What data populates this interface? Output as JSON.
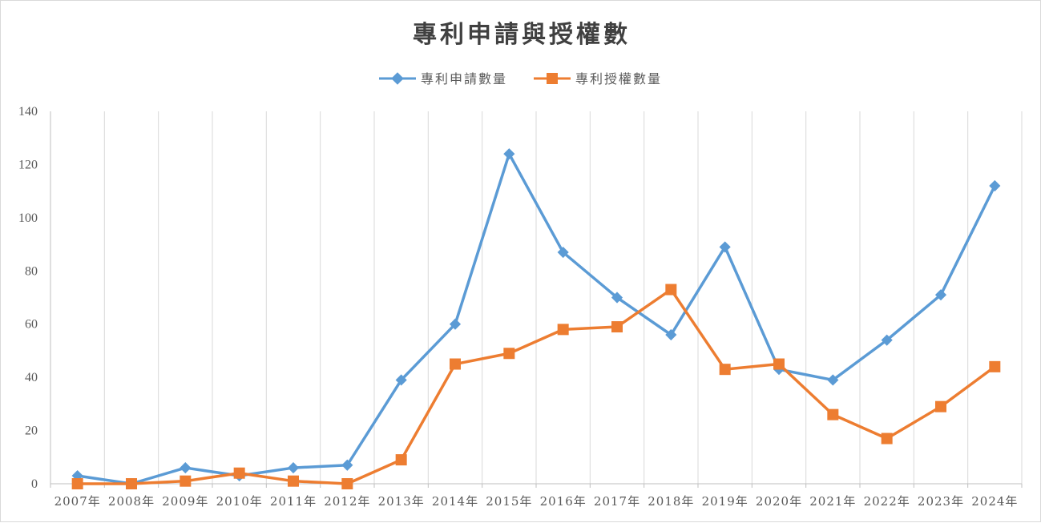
{
  "chart_data": {
    "type": "line",
    "title": "專利申請與授權數",
    "categories": [
      "2007年",
      "2008年",
      "2009年",
      "2010年",
      "2011年",
      "2012年",
      "2013年",
      "2014年",
      "2015年",
      "2016年",
      "2017年",
      "2018年",
      "2019年",
      "2020年",
      "2021年",
      "2022年",
      "2023年",
      "2024年"
    ],
    "series": [
      {
        "name": "專利申請數量",
        "color": "#5b9bd5",
        "marker": "diamond",
        "values": [
          3,
          0,
          6,
          3,
          6,
          7,
          39,
          60,
          124,
          87,
          70,
          56,
          89,
          43,
          39,
          54,
          71,
          112
        ]
      },
      {
        "name": "專利授權數量",
        "color": "#ed7d31",
        "marker": "square",
        "values": [
          0,
          0,
          1,
          4,
          1,
          0,
          9,
          45,
          49,
          58,
          59,
          73,
          43,
          45,
          26,
          17,
          29,
          44
        ]
      }
    ],
    "ylim": [
      0,
      140
    ],
    "yticks": [
      0,
      20,
      40,
      60,
      80,
      100,
      120,
      140
    ],
    "legend_position": "top-center",
    "grid": "vertical"
  }
}
